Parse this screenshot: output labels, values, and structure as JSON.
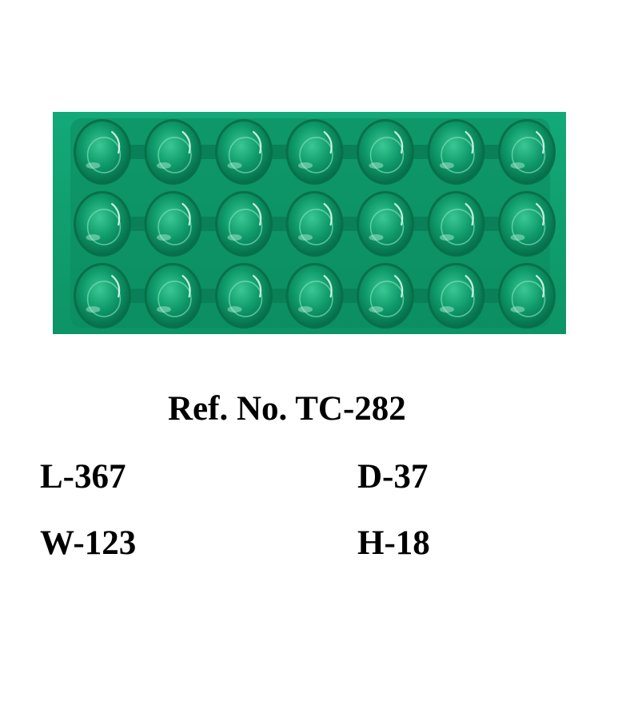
{
  "product": {
    "ref_no": "Ref. No. TC-282",
    "dimensions": {
      "length": "L-367",
      "depth": "D-37",
      "width": "W-123",
      "height": "H-18"
    }
  },
  "colors": {
    "tray_green": "#0fa474",
    "tray_dark": "#087a55",
    "tray_highlight": "#5fd6ab",
    "text": "#000000",
    "background": "#ffffff"
  },
  "tray_grid": {
    "rows": 3,
    "columns": 7
  }
}
